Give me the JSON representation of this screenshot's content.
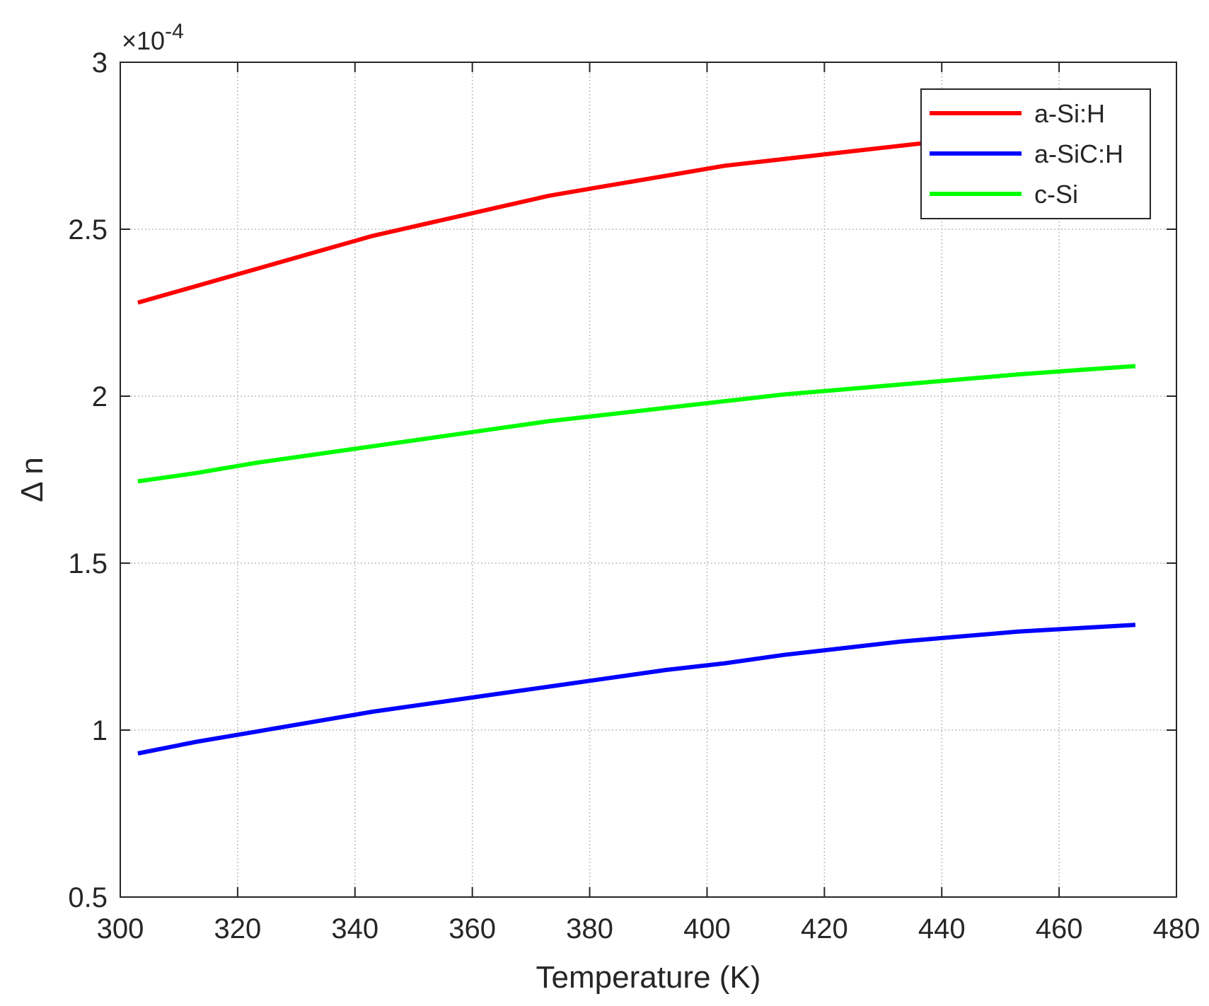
{
  "chart_data": {
    "type": "line",
    "title": "",
    "xlabel": "Temperature (K)",
    "ylabel": "Δ n",
    "y_multiplier": "×10",
    "y_exponent": "-4",
    "xlim": [
      300,
      480
    ],
    "ylim": [
      0.5,
      3
    ],
    "x_ticks": [
      "300",
      "320",
      "340",
      "360",
      "380",
      "400",
      "420",
      "440",
      "460",
      "480"
    ],
    "y_ticks": [
      "0.5",
      "1",
      "1.5",
      "2",
      "2.5",
      "3"
    ],
    "grid": true,
    "legend_position": "top-right",
    "x": [
      303,
      313,
      323,
      333,
      343,
      353,
      363,
      373,
      383,
      393,
      403,
      413,
      423,
      433,
      443,
      453,
      463,
      473
    ],
    "series": [
      {
        "name": "a-Si:H",
        "color": "#ff0000",
        "values": [
          2.28,
          2.33,
          2.38,
          2.43,
          2.48,
          2.52,
          2.56,
          2.6,
          2.63,
          2.66,
          2.69,
          2.71,
          2.73,
          2.75,
          2.77,
          2.79,
          2.81,
          2.83
        ]
      },
      {
        "name": "a-SiC:H",
        "color": "#0000ff",
        "values": [
          0.93,
          0.965,
          0.995,
          1.025,
          1.055,
          1.08,
          1.105,
          1.13,
          1.155,
          1.18,
          1.2,
          1.225,
          1.245,
          1.265,
          1.28,
          1.295,
          1.305,
          1.315
        ]
      },
      {
        "name": "c-Si",
        "color": "#00ff00",
        "values": [
          1.745,
          1.77,
          1.8,
          1.825,
          1.85,
          1.875,
          1.9,
          1.925,
          1.945,
          1.965,
          1.985,
          2.005,
          2.02,
          2.035,
          2.05,
          2.065,
          2.078,
          2.09
        ]
      }
    ]
  }
}
